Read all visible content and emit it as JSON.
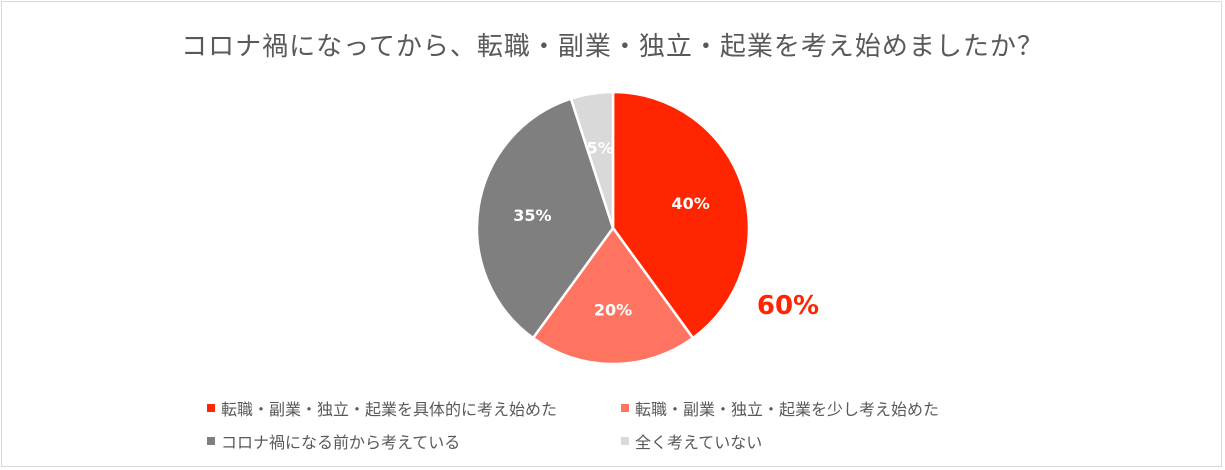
{
  "chart_data": {
    "type": "pie",
    "title": "コロナ禍になってから、転職・副業・独立・起業を考え始めましたか？",
    "slices": [
      {
        "label": "転職・副業・独立・起業を具体的に考え始めた",
        "value": 40,
        "display": "40%",
        "color": "#ff2500",
        "label_color": "#ffffff"
      },
      {
        "label": "転職・副業・独立・起業を少し考え始めた",
        "value": 20,
        "display": "20%",
        "color": "#ff7460",
        "label_color": "#ffffff"
      },
      {
        "label": "コロナ禍になる前から考えている",
        "value": 35,
        "display": "35%",
        "color": "#7f7f7f",
        "label_color": "#ffffff"
      },
      {
        "label": "全く考えていない",
        "value": 5,
        "display": "5%",
        "color": "#d9d9d9",
        "label_color": "#ffffff"
      }
    ],
    "annotation": {
      "text": "60%",
      "color": "#ff2500"
    },
    "legend_position": "bottom"
  }
}
